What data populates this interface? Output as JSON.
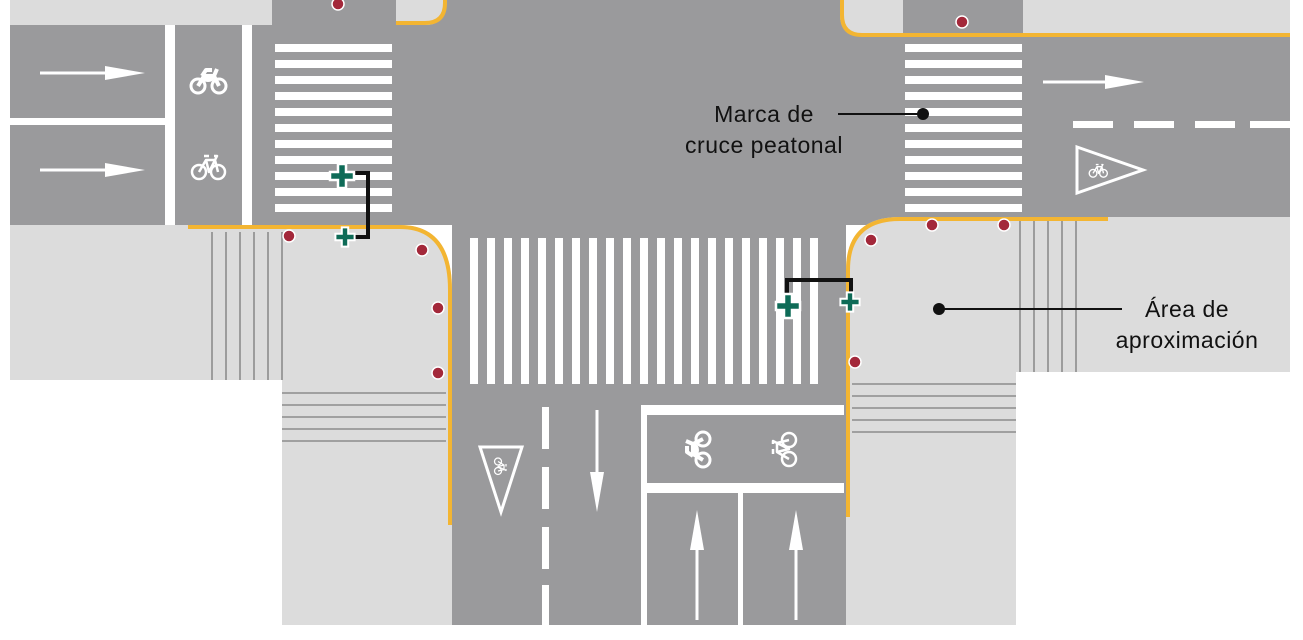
{
  "annotations": {
    "crosswalk_marking": {
      "line1": "Marca de",
      "line2": "cruce peatonal"
    },
    "approach_area": {
      "line1": "Área de",
      "line2": "aproximación"
    }
  },
  "colors": {
    "road": "#9a9a9c",
    "sidewalk": "#dcdcdc",
    "curb": "#f3b532",
    "marking": "#ffffff",
    "bollard": "#a3283a",
    "signal": "#0e6b57",
    "tactile_line": "#8c8c8c",
    "leader_line": "#111111"
  },
  "icons": {
    "bike_lane_motorcycle": "motorcycle-icon",
    "bike_lane_bicycle": "bicycle-icon",
    "yield_sign": "yield-bicycle-icon",
    "direction_arrow": "arrow-icon",
    "pedestrian_signal": "pedestrian-signal-icon",
    "bollard": "bollard-icon"
  }
}
